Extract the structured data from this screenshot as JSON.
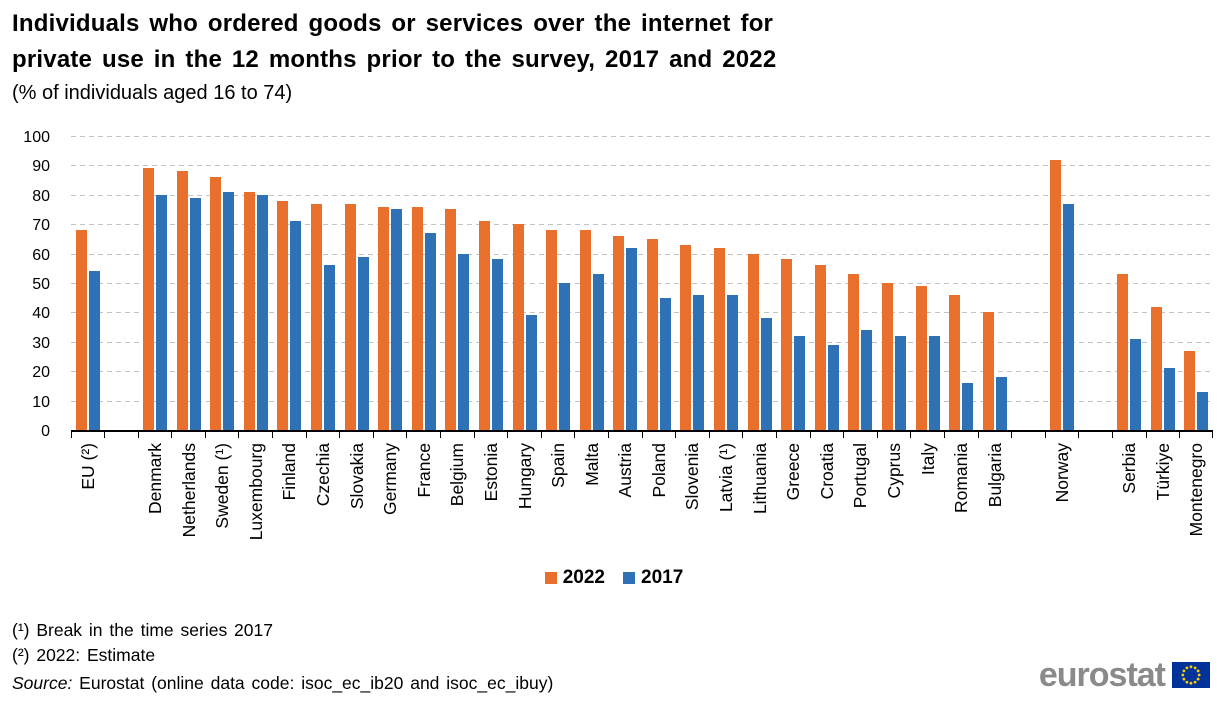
{
  "title": {
    "line1": "Individuals who ordered goods or services over the internet for",
    "line2": "private use in the 12 months prior to the survey, 2017 and 2022",
    "subtitle": "(% of individuals aged 16 to 74)"
  },
  "chart_data": {
    "type": "bar",
    "title": "Individuals who ordered goods or services over the internet for private use in the 12 months prior to the survey, 2017 and 2022",
    "ylabel": "% of individuals aged 16 to 74",
    "ylim": [
      0,
      100
    ],
    "ytick_step": 10,
    "grid": "horizontal-dashed",
    "legend_position": "bottom-center",
    "series": [
      {
        "name": "2022",
        "color": "#e8702c"
      },
      {
        "name": "2017",
        "color": "#2e72b5"
      }
    ],
    "categories": [
      {
        "label": "EU (²)",
        "2022": 68,
        "2017": 54
      },
      {
        "label": "",
        "spacer": true
      },
      {
        "label": "Denmark",
        "2022": 89,
        "2017": 80
      },
      {
        "label": "Netherlands",
        "2022": 88,
        "2017": 79
      },
      {
        "label": "Sweden (¹)",
        "2022": 86,
        "2017": 81
      },
      {
        "label": "Luxembourg",
        "2022": 81,
        "2017": 80
      },
      {
        "label": "Finland",
        "2022": 78,
        "2017": 71
      },
      {
        "label": "Czechia",
        "2022": 77,
        "2017": 56
      },
      {
        "label": "Slovakia",
        "2022": 77,
        "2017": 59
      },
      {
        "label": "Germany",
        "2022": 76,
        "2017": 75
      },
      {
        "label": "France",
        "2022": 76,
        "2017": 67
      },
      {
        "label": "Belgium",
        "2022": 75,
        "2017": 60
      },
      {
        "label": "Estonia",
        "2022": 71,
        "2017": 58
      },
      {
        "label": "Hungary",
        "2022": 70,
        "2017": 39
      },
      {
        "label": "Spain",
        "2022": 68,
        "2017": 50
      },
      {
        "label": "Malta",
        "2022": 68,
        "2017": 53
      },
      {
        "label": "Austria",
        "2022": 66,
        "2017": 62
      },
      {
        "label": "Poland",
        "2022": 65,
        "2017": 45
      },
      {
        "label": "Slovenia",
        "2022": 63,
        "2017": 46
      },
      {
        "label": "Latvia (¹)",
        "2022": 62,
        "2017": 46
      },
      {
        "label": "Lithuania",
        "2022": 60,
        "2017": 38
      },
      {
        "label": "Greece",
        "2022": 58,
        "2017": 32
      },
      {
        "label": "Croatia",
        "2022": 56,
        "2017": 29
      },
      {
        "label": "Portugal",
        "2022": 53,
        "2017": 34
      },
      {
        "label": "Cyprus",
        "2022": 50,
        "2017": 32
      },
      {
        "label": "Italy",
        "2022": 49,
        "2017": 32
      },
      {
        "label": "Romania",
        "2022": 46,
        "2017": 16
      },
      {
        "label": "Bulgaria",
        "2022": 40,
        "2017": 18
      },
      {
        "label": "",
        "spacer": true
      },
      {
        "label": "Norway",
        "2022": 92,
        "2017": 77
      },
      {
        "label": "",
        "spacer": true
      },
      {
        "label": "Serbia",
        "2022": 53,
        "2017": 31
      },
      {
        "label": "Türkiye",
        "2022": 42,
        "2017": 21
      },
      {
        "label": "Montenegro",
        "2022": 27,
        "2017": 13
      }
    ]
  },
  "legend": {
    "items": [
      {
        "label": "2022",
        "color": "#e8702c"
      },
      {
        "label": "2017",
        "color": "#2e72b5"
      }
    ]
  },
  "footnotes": {
    "note1": "(¹) Break in the time series 2017",
    "note2": "(²) 2022: Estimate",
    "source_label": "Source:",
    "source_text": " Eurostat (online data code: isoc_ec_ib20 and isoc_ec_ibuy)"
  },
  "logo": {
    "text": "eurostat"
  },
  "colors": {
    "series_2022": "#e8702c",
    "series_2017": "#2e72b5",
    "gridline": "#c3c3c3",
    "axis": "#000000",
    "logo_gray": "#8a8a8a",
    "flag_blue": "#003399",
    "flag_stars": "#ffcc00"
  }
}
